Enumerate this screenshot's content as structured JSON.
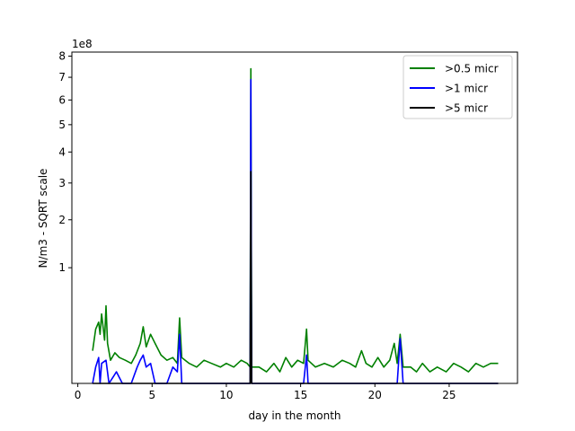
{
  "chart_data": {
    "type": "line",
    "title": "",
    "xlabel": "day in the month",
    "ylabel": "N/m3 - SQRT scale",
    "y_scale": "sqrt",
    "offset_text": "1e8",
    "xlim": [
      -0.4,
      29.6
    ],
    "ylim": [
      0,
      8.2
    ],
    "x_ticks": [
      0,
      5,
      10,
      15,
      20,
      25
    ],
    "y_ticks": [
      1,
      2,
      3,
      4,
      5,
      6,
      7,
      8
    ],
    "grid": false,
    "legend_position": "top-right",
    "series": [
      {
        "name": ">0.5 micr",
        "color": "#008000",
        "points": [
          [
            1.0,
            0.08
          ],
          [
            1.2,
            0.22
          ],
          [
            1.4,
            0.28
          ],
          [
            1.5,
            0.18
          ],
          [
            1.6,
            0.36
          ],
          [
            1.8,
            0.14
          ],
          [
            1.9,
            0.45
          ],
          [
            2.0,
            0.12
          ],
          [
            2.2,
            0.04
          ],
          [
            2.5,
            0.07
          ],
          [
            2.8,
            0.05
          ],
          [
            3.2,
            0.04
          ],
          [
            3.6,
            0.03
          ],
          [
            3.9,
            0.06
          ],
          [
            4.2,
            0.12
          ],
          [
            4.4,
            0.24
          ],
          [
            4.6,
            0.1
          ],
          [
            4.9,
            0.18
          ],
          [
            5.2,
            0.12
          ],
          [
            5.6,
            0.06
          ],
          [
            6.0,
            0.04
          ],
          [
            6.4,
            0.05
          ],
          [
            6.7,
            0.03
          ],
          [
            6.85,
            0.32
          ],
          [
            7.0,
            0.05
          ],
          [
            7.5,
            0.03
          ],
          [
            8.0,
            0.02
          ],
          [
            8.5,
            0.04
          ],
          [
            9.0,
            0.03
          ],
          [
            9.6,
            0.02
          ],
          [
            10.0,
            0.03
          ],
          [
            10.5,
            0.02
          ],
          [
            11.0,
            0.04
          ],
          [
            11.4,
            0.03
          ],
          [
            11.6,
            0.02
          ],
          [
            11.65,
            7.4
          ],
          [
            11.7,
            0.02
          ],
          [
            12.2,
            0.02
          ],
          [
            12.7,
            0.01
          ],
          [
            13.2,
            0.03
          ],
          [
            13.6,
            0.01
          ],
          [
            14.0,
            0.05
          ],
          [
            14.4,
            0.02
          ],
          [
            14.8,
            0.04
          ],
          [
            15.2,
            0.03
          ],
          [
            15.4,
            0.22
          ],
          [
            15.5,
            0.04
          ],
          [
            16.0,
            0.02
          ],
          [
            16.6,
            0.03
          ],
          [
            17.2,
            0.02
          ],
          [
            17.8,
            0.04
          ],
          [
            18.3,
            0.03
          ],
          [
            18.7,
            0.02
          ],
          [
            19.1,
            0.08
          ],
          [
            19.4,
            0.03
          ],
          [
            19.8,
            0.02
          ],
          [
            20.2,
            0.05
          ],
          [
            20.6,
            0.02
          ],
          [
            21.0,
            0.04
          ],
          [
            21.3,
            0.12
          ],
          [
            21.5,
            0.03
          ],
          [
            21.7,
            0.18
          ],
          [
            21.9,
            0.02
          ],
          [
            22.4,
            0.02
          ],
          [
            22.8,
            0.01
          ],
          [
            23.2,
            0.03
          ],
          [
            23.7,
            0.01
          ],
          [
            24.2,
            0.02
          ],
          [
            24.8,
            0.01
          ],
          [
            25.3,
            0.03
          ],
          [
            25.8,
            0.02
          ],
          [
            26.3,
            0.01
          ],
          [
            26.8,
            0.03
          ],
          [
            27.3,
            0.02
          ],
          [
            27.8,
            0.03
          ],
          [
            28.3,
            0.03
          ]
        ]
      },
      {
        "name": ">1 micr",
        "color": "#0000ff",
        "points": [
          [
            1.0,
            0.0
          ],
          [
            1.2,
            0.02
          ],
          [
            1.4,
            0.05
          ],
          [
            1.5,
            0.0
          ],
          [
            1.6,
            0.03
          ],
          [
            1.9,
            0.04
          ],
          [
            2.1,
            0.0
          ],
          [
            2.6,
            0.01
          ],
          [
            3.0,
            0.0
          ],
          [
            3.6,
            0.0
          ],
          [
            4.0,
            0.02
          ],
          [
            4.2,
            0.04
          ],
          [
            4.4,
            0.06
          ],
          [
            4.6,
            0.02
          ],
          [
            4.9,
            0.03
          ],
          [
            5.2,
            0.0
          ],
          [
            6.0,
            0.0
          ],
          [
            6.4,
            0.02
          ],
          [
            6.7,
            0.01
          ],
          [
            6.85,
            0.18
          ],
          [
            7.0,
            0.0
          ],
          [
            8.0,
            0.0
          ],
          [
            9.0,
            0.0
          ],
          [
            10.0,
            0.0
          ],
          [
            11.0,
            0.0
          ],
          [
            11.6,
            0.0
          ],
          [
            11.65,
            6.9
          ],
          [
            11.7,
            0.0
          ],
          [
            12.5,
            0.0
          ],
          [
            14.0,
            0.0
          ],
          [
            15.2,
            0.0
          ],
          [
            15.4,
            0.06
          ],
          [
            15.5,
            0.0
          ],
          [
            17.0,
            0.0
          ],
          [
            19.0,
            0.0
          ],
          [
            21.3,
            0.0
          ],
          [
            21.5,
            0.0
          ],
          [
            21.7,
            0.15
          ],
          [
            21.9,
            0.0
          ],
          [
            24.0,
            0.0
          ],
          [
            26.0,
            0.0
          ],
          [
            28.3,
            0.0
          ]
        ]
      },
      {
        "name": ">5 micr",
        "color": "#000000",
        "points": [
          [
            1.0,
            0.0
          ],
          [
            11.6,
            0.0
          ],
          [
            11.65,
            3.35
          ],
          [
            11.7,
            0.0
          ],
          [
            28.3,
            0.0
          ]
        ]
      }
    ]
  }
}
